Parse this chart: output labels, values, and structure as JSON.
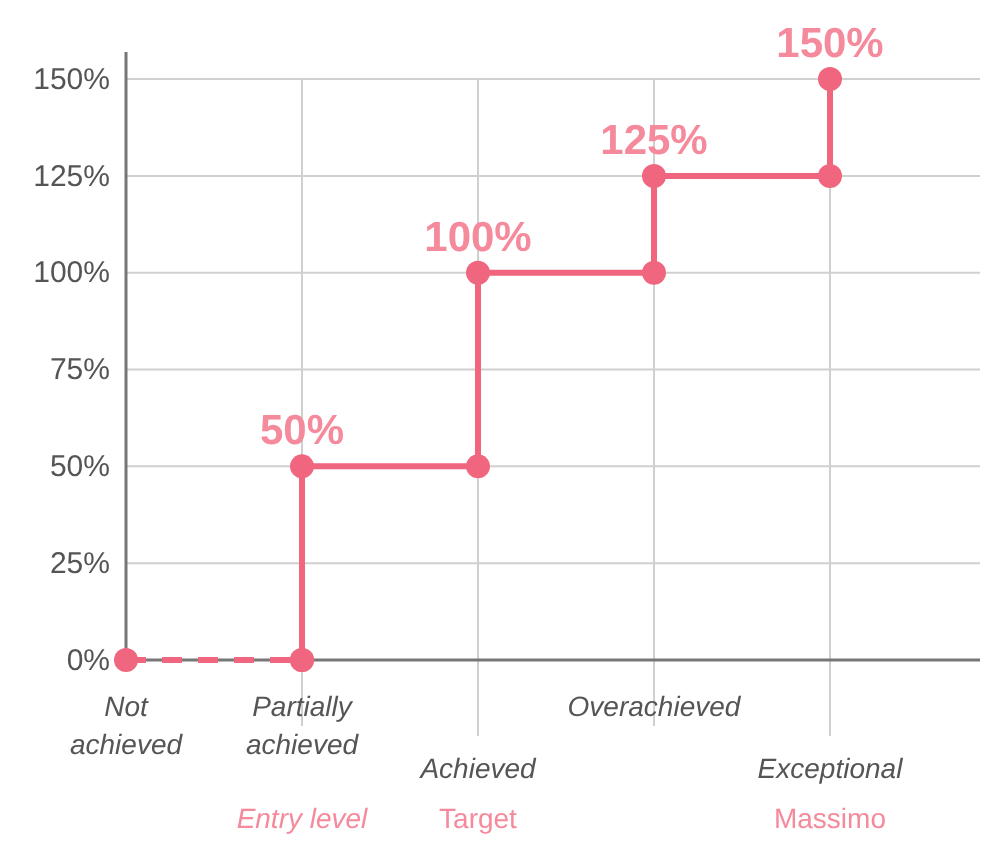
{
  "chart_data": {
    "type": "line",
    "categories": [
      "Not achieved",
      "Partially achieved",
      "Achieved",
      "Overachieved",
      "Exceptional"
    ],
    "series": [
      {
        "color": "#f0667e",
        "line_style": "dashed",
        "x": [
          "Not achieved",
          "Partially achieved"
        ],
        "values": [
          0,
          0
        ]
      },
      {
        "color": "#f0667e",
        "line_style": "solid",
        "x": [
          "Partially achieved",
          "Partially achieved",
          "Achieved",
          "Achieved",
          "Overachieved",
          "Overachieved",
          "Exceptional",
          "Exceptional"
        ],
        "values": [
          0,
          50,
          50,
          100,
          100,
          125,
          125,
          150
        ],
        "value_labels": [
          null,
          "50%",
          null,
          "100%",
          null,
          "125%",
          null,
          "150%"
        ]
      }
    ],
    "ylim": [
      0,
      157
    ],
    "yticks": [
      {
        "value": 0,
        "label": "0%"
      },
      {
        "value": 25,
        "label": "25%"
      },
      {
        "value": 50,
        "label": "50%"
      },
      {
        "value": 75,
        "label": "75%"
      },
      {
        "value": 100,
        "label": "100%"
      },
      {
        "value": 125,
        "label": "125%"
      },
      {
        "value": 150,
        "label": "150%"
      }
    ],
    "grid": true,
    "marker": "circle",
    "annotations": [
      "Entry level",
      "Target",
      "Massimo"
    ]
  }
}
